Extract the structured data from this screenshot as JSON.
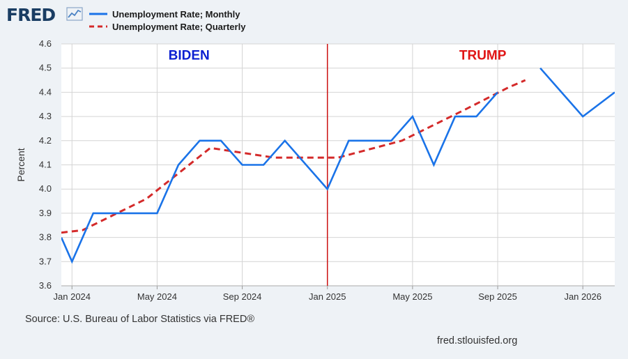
{
  "header": {
    "logo_text": "FRED",
    "logo_icon": "line-chart-icon"
  },
  "footer": {
    "source": "Source: U.S. Bureau of Labor Statistics via FRED®",
    "site": "fred.stlouisfed.org"
  },
  "colors": {
    "monthly": "#1a73e8",
    "quarterly": "#d42a2a",
    "biden": "#0b1fd1",
    "trump": "#e01616",
    "divider": "#cc1111",
    "grid": "#d4d4d4",
    "plot_bg": "#ffffff",
    "logo": "#1a3d63"
  },
  "chart_data": {
    "type": "line",
    "title": "",
    "xlabel": "",
    "ylabel": "Percent",
    "ylim": [
      3.6,
      4.6
    ],
    "y_ticks": [
      "3.6",
      "3.7",
      "3.8",
      "3.9",
      "4.0",
      "4.1",
      "4.2",
      "4.3",
      "4.4",
      "4.5",
      "4.6"
    ],
    "x_range_months": [
      -0.5,
      25.5
    ],
    "x_ticks": [
      {
        "label": "Jan 2024",
        "month": 0
      },
      {
        "label": "May 2024",
        "month": 4
      },
      {
        "label": "Sep 2024",
        "month": 8
      },
      {
        "label": "Jan 2025",
        "month": 12
      },
      {
        "label": "May 2025",
        "month": 16
      },
      {
        "label": "Sep 2025",
        "month": 20
      },
      {
        "label": "Jan 2026",
        "month": 24
      }
    ],
    "legend_position": "top-left",
    "series": [
      {
        "name": "Unemployment Rate; Monthly",
        "style": "solid",
        "points": [
          [
            -0.5,
            3.8
          ],
          [
            0,
            3.7
          ],
          [
            1,
            3.9
          ],
          [
            2,
            3.9
          ],
          [
            3,
            3.9
          ],
          [
            4,
            3.9
          ],
          [
            5,
            4.1
          ],
          [
            6,
            4.2
          ],
          [
            7,
            4.2
          ],
          [
            8,
            4.1
          ],
          [
            9,
            4.1
          ],
          [
            10,
            4.2
          ],
          [
            12,
            4.0
          ],
          [
            13,
            4.2
          ],
          [
            14,
            4.2
          ],
          [
            15,
            4.2
          ],
          [
            16,
            4.3
          ],
          [
            17,
            4.1
          ],
          [
            18,
            4.3
          ],
          [
            19,
            4.3
          ],
          [
            20,
            4.4
          ],
          null,
          [
            22,
            4.5
          ],
          [
            24,
            4.3
          ],
          [
            25.5,
            4.4
          ]
        ]
      },
      {
        "name": "Unemployment Rate; Quarterly",
        "style": "dashed",
        "points": [
          [
            -0.5,
            3.82
          ],
          [
            0.5,
            3.83
          ],
          [
            3.5,
            3.96
          ],
          [
            6.5,
            4.17
          ],
          [
            9.5,
            4.13
          ],
          [
            12.5,
            4.13
          ],
          [
            15.5,
            4.2
          ],
          [
            18.5,
            4.33
          ],
          [
            20.5,
            4.42
          ],
          [
            21.3,
            4.45
          ]
        ]
      }
    ],
    "annotations": [
      {
        "text": "BIDEN",
        "month": 5.5,
        "y": 4.555,
        "color_key": "biden"
      },
      {
        "text": "TRUMP",
        "month": 19.3,
        "y": 4.555,
        "color_key": "trump"
      }
    ],
    "divider_month": 12
  }
}
